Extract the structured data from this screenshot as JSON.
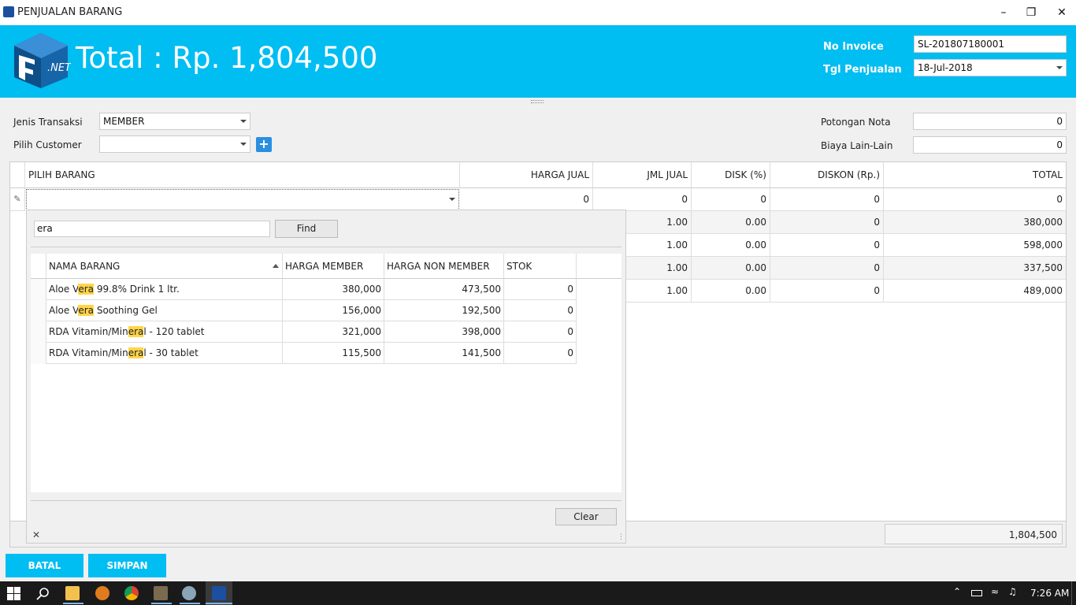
{
  "window": {
    "title": "PENJUALAN BARANG",
    "min": "–",
    "restore": "❐",
    "close": "✕"
  },
  "header": {
    "total_text": "Total : Rp. 1,804,500",
    "logo_text": ".NET",
    "no_invoice_label": "No Invoice",
    "no_invoice_value": "SL-201807180001",
    "tgl_label": "Tgl Penjualan",
    "tgl_value": "18-Jul-2018"
  },
  "form": {
    "jenis_label": "Jenis Transaksi",
    "jenis_value": "MEMBER",
    "customer_label": "Pilih Customer",
    "customer_value": "",
    "add_icon": "+",
    "potongan_label": "Potongan Nota",
    "potongan_value": "0",
    "biaya_label": "Biaya Lain-Lain",
    "biaya_value": "0"
  },
  "grid": {
    "columns": [
      "PILIH BARANG",
      "HARGA JUAL",
      "JML JUAL",
      "DISK (%)",
      "DISKON (Rp.)",
      "TOTAL"
    ],
    "edit_row": {
      "harga": "0",
      "jml": "0",
      "disk": "0",
      "diskon": "0",
      "total": "0"
    },
    "rows": [
      {
        "jml": "1.00",
        "disk": "0.00",
        "diskon": "0",
        "total": "380,000"
      },
      {
        "jml": "1.00",
        "disk": "0.00",
        "diskon": "0",
        "total": "598,000"
      },
      {
        "jml": "1.00",
        "disk": "0.00",
        "diskon": "0",
        "total": "337,500"
      },
      {
        "jml": "1.00",
        "disk": "0.00",
        "diskon": "0",
        "total": "489,000"
      }
    ],
    "footer_total": "1,804,500"
  },
  "popup": {
    "search_value": "era",
    "find_label": "Find",
    "clear_label": "Clear",
    "close_icon": "✕",
    "columns": [
      "NAMA BARANG",
      "HARGA MEMBER",
      "HARGA NON MEMBER",
      "STOK"
    ],
    "items": [
      {
        "name_pre": "Aloe V",
        "name_hl": "era",
        "name_post": " 99.8% Drink 1 ltr.",
        "member": "380,000",
        "non_member": "473,500",
        "stok": "0"
      },
      {
        "name_pre": "Aloe V",
        "name_hl": "era",
        "name_post": " Soothing Gel",
        "member": "156,000",
        "non_member": "192,500",
        "stok": "0"
      },
      {
        "name_pre": "RDA Vitamin/Min",
        "name_hl": "era",
        "name_post": "l - 120 tablet",
        "member": "321,000",
        "non_member": "398,000",
        "stok": "0"
      },
      {
        "name_pre": "RDA Vitamin/Min",
        "name_hl": "era",
        "name_post": "l - 30 tablet",
        "member": "115,500",
        "non_member": "141,500",
        "stok": "0"
      }
    ]
  },
  "buttons": {
    "batal": "BATAL",
    "simpan": "SIMPAN"
  },
  "taskbar": {
    "time": "7:26 AM"
  },
  "colors": {
    "accent": "#00bdf2",
    "highlight": "#ffd54a"
  }
}
